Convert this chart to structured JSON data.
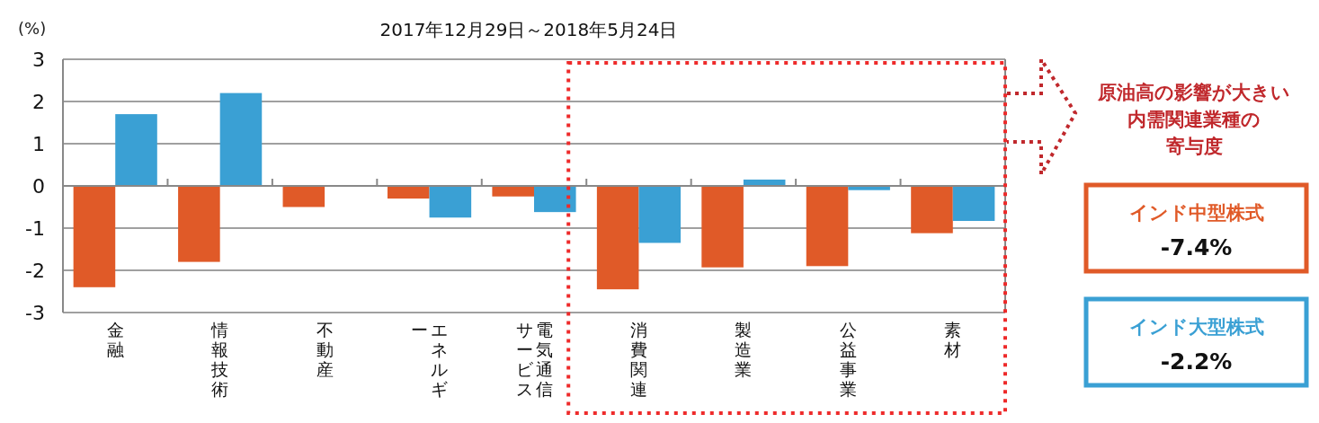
{
  "chart_data": {
    "type": "bar",
    "subtitle": "2017年12月29日～2018年5月24日",
    "ylabel": "(%)",
    "categories": [
      "金融",
      "情報技術",
      "不動産",
      "エネルギー",
      "電気通信サービス",
      "消費関連",
      "製造業",
      "公益事業",
      "素材"
    ],
    "series": [
      {
        "name": "インド中型株式",
        "color": "#e05a28",
        "values": [
          -2.4,
          -1.8,
          -0.5,
          -0.3,
          -0.25,
          -2.45,
          -1.93,
          -1.9,
          -1.12
        ]
      },
      {
        "name": "インド大型株式",
        "color": "#3aa0d4",
        "values": [
          1.7,
          2.2,
          null,
          -0.75,
          -0.62,
          -1.35,
          0.15,
          -0.1,
          -0.83
        ]
      }
    ],
    "ylim": [
      -3,
      3
    ],
    "yticks": [
      -3,
      -2,
      -1,
      0,
      1,
      2,
      3
    ],
    "grid": "y",
    "legend": "right",
    "annotations": [
      "原油高の影響が大きい",
      "内需関連業種の",
      "寄与度",
      "-7.4%",
      "-2.2%"
    ]
  }
}
